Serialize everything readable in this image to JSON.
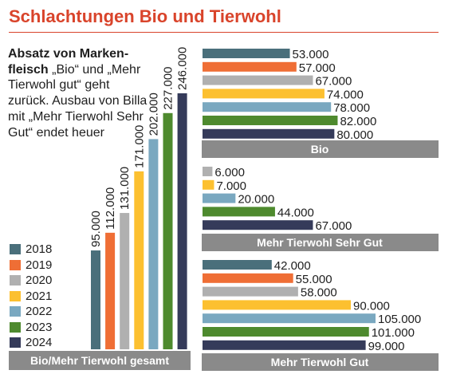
{
  "title": "Schlachtungen Bio und Tierwohl",
  "description": {
    "bold": "Absatz von Marken-fleisch",
    "text": " „Bio“ und „Mehr Tierwohl gut“ geht zurück. Ausbau von Billa mit „Mehr Tierwohl Sehr Gut“ endet heuer"
  },
  "colors": {
    "title": "#d9442b",
    "banner": "#8a8a8a",
    "years": [
      "#4a6f7b",
      "#ef6e35",
      "#b0b0b0",
      "#fcc030",
      "#7aa8c0",
      "#4e8a2e",
      "#353b5a"
    ]
  },
  "chart_data": [
    {
      "type": "bar",
      "orientation": "vertical",
      "title": "Bio/Mehr Tierwohl gesamt",
      "categories": [
        "2018",
        "2019",
        "2020",
        "2021",
        "2022",
        "2023",
        "2024"
      ],
      "values": [
        95000,
        112000,
        131000,
        171000,
        202000,
        227000,
        246000
      ],
      "labels": [
        "95.000",
        "112.000",
        "131.000",
        "171.000",
        "202.000",
        "227.000",
        "246.000"
      ],
      "legend": "left"
    },
    {
      "type": "bar",
      "orientation": "horizontal",
      "title": "Bio",
      "categories": [
        "2018",
        "2019",
        "2020",
        "2021",
        "2022",
        "2023",
        "2024"
      ],
      "values": [
        53000,
        57000,
        67000,
        74000,
        78000,
        82000,
        80000
      ],
      "labels": [
        "53.000",
        "57.000",
        "67.000",
        "74.000",
        "78.000",
        "82.000",
        "80.000"
      ]
    },
    {
      "type": "bar",
      "orientation": "horizontal",
      "title": "Mehr Tierwohl Sehr Gut",
      "categories": [
        "2020",
        "2021",
        "2022",
        "2023",
        "2024"
      ],
      "values": [
        6000,
        7000,
        20000,
        44000,
        67000
      ],
      "labels": [
        "6.000",
        "7.000",
        "20.000",
        "44.000",
        "67.000"
      ]
    },
    {
      "type": "bar",
      "orientation": "horizontal",
      "title": "Mehr Tierwohl Gut",
      "categories": [
        "2018",
        "2019",
        "2020",
        "2021",
        "2022",
        "2023",
        "2024"
      ],
      "values": [
        42000,
        55000,
        58000,
        90000,
        105000,
        101000,
        99000
      ],
      "labels": [
        "42.000",
        "55.000",
        "58.000",
        "90.000",
        "105.000",
        "101.000",
        "99.000"
      ]
    }
  ]
}
